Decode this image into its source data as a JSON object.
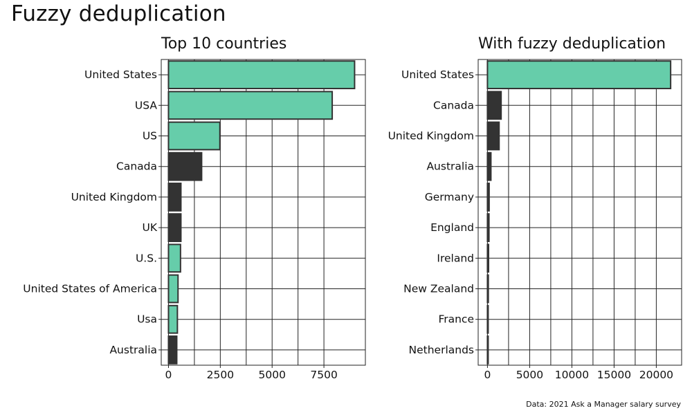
{
  "page": {
    "title": "Fuzzy deduplication",
    "caption": "Data: 2021 Ask a Manager salary survey"
  },
  "colors": {
    "highlight": "#66cdaa",
    "other": "#333333",
    "grid": "#222222"
  },
  "chart_data": [
    {
      "type": "bar",
      "orientation": "horizontal",
      "title": "Top 10 countries",
      "categories": [
        "United States",
        "USA",
        "US",
        "Canada",
        "United Kingdom",
        "UK",
        "U.S.",
        "United States of America",
        "Usa",
        "Australia"
      ],
      "values": [
        8980,
        7900,
        2480,
        1600,
        600,
        600,
        580,
        460,
        430,
        400
      ],
      "highlighted": [
        true,
        true,
        true,
        false,
        false,
        false,
        true,
        true,
        true,
        false
      ],
      "xlim": [
        -350,
        9500
      ],
      "xticks": [
        0,
        2500,
        5000,
        7500
      ],
      "xlabel": "",
      "ylabel": "",
      "grid": true
    },
    {
      "type": "bar",
      "orientation": "horizontal",
      "title": "With fuzzy deduplication",
      "categories": [
        "United States",
        "Canada",
        "United Kingdom",
        "Australia",
        "Germany",
        "England",
        "Ireland",
        "New Zealand",
        "France",
        "Netherlands"
      ],
      "values": [
        21700,
        1620,
        1380,
        410,
        200,
        180,
        130,
        100,
        70,
        60
      ],
      "highlighted": [
        true,
        false,
        false,
        false,
        false,
        false,
        false,
        false,
        false,
        false
      ],
      "xlim": [
        -1100,
        23000
      ],
      "xticks": [
        0,
        5000,
        10000,
        15000,
        20000
      ],
      "xlabel": "",
      "ylabel": "",
      "grid": true
    }
  ]
}
